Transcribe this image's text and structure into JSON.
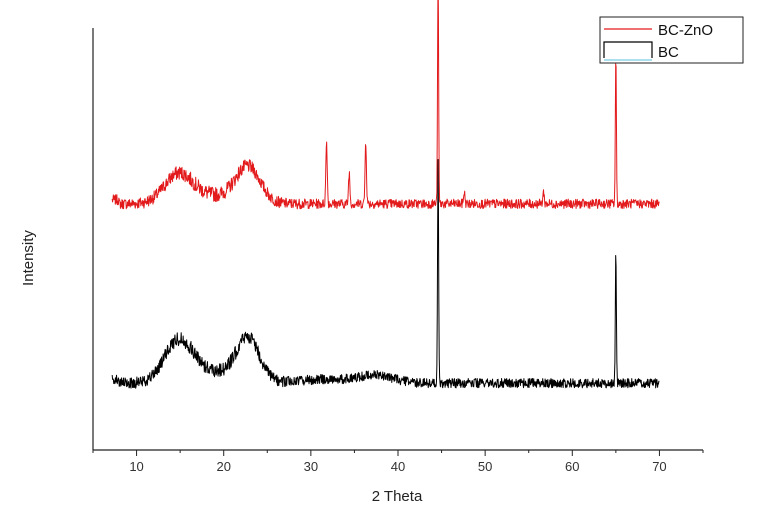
{
  "chart_data": {
    "type": "line",
    "title": "",
    "xlabel": "2 Theta",
    "ylabel": "Intensity",
    "xlim": [
      5,
      75
    ],
    "x_ticks": [
      10,
      20,
      30,
      40,
      50,
      60,
      70
    ],
    "y_ticks_shown": false,
    "grid": false,
    "legend_position": "top-right",
    "series": [
      {
        "name": "BC-ZnO",
        "color": "#e31a1c",
        "baseline": 0.58,
        "noise": 0.012,
        "broad": [
          [
            14.8,
            1.6,
            0.07
          ],
          [
            22.8,
            1.4,
            0.09
          ],
          [
            18.5,
            3.0,
            0.02
          ]
        ],
        "peaks": [
          [
            31.8,
            0.08,
            0.16
          ],
          [
            34.4,
            0.08,
            0.08
          ],
          [
            36.3,
            0.08,
            0.16
          ],
          [
            44.6,
            0.06,
            0.6
          ],
          [
            47.6,
            0.08,
            0.03
          ],
          [
            56.7,
            0.08,
            0.03
          ],
          [
            65.0,
            0.06,
            0.38
          ]
        ]
      },
      {
        "name": "BC",
        "color": "#000000",
        "baseline": 0.12,
        "noise": 0.012,
        "broad": [
          [
            14.8,
            1.6,
            0.1
          ],
          [
            22.8,
            1.3,
            0.11
          ],
          [
            18.5,
            3.0,
            0.03
          ],
          [
            31.5,
            3.0,
            0.01
          ],
          [
            37.5,
            2.0,
            0.02
          ]
        ],
        "peaks": [
          [
            44.6,
            0.06,
            0.58
          ],
          [
            65.0,
            0.06,
            0.34
          ]
        ]
      }
    ]
  }
}
